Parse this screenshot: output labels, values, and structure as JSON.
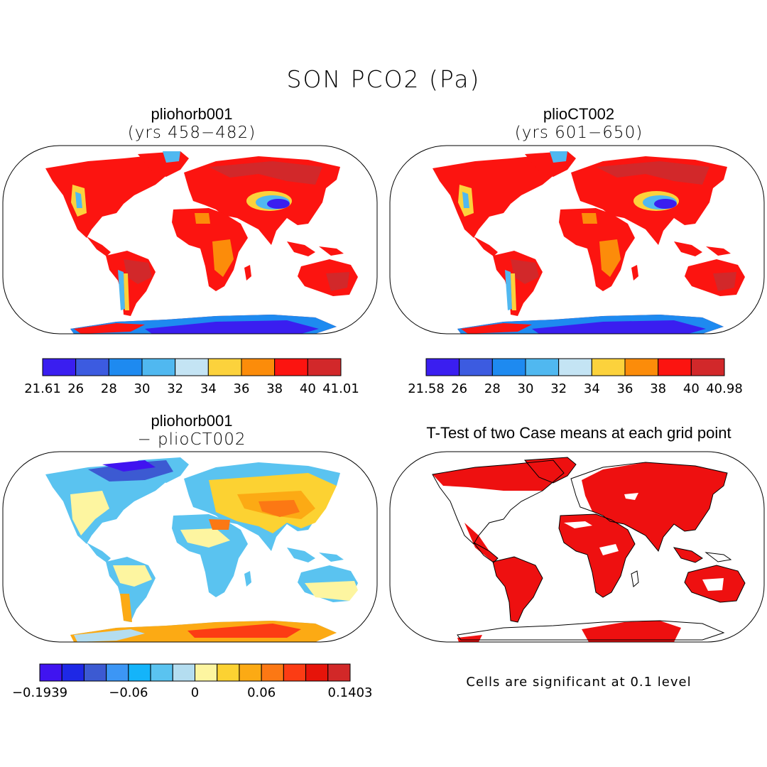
{
  "main_title": "SON PCO2 (Pa)",
  "panels": {
    "top_left": {
      "title": "pliohorb001",
      "subtitle": "(yrs 458−482)"
    },
    "top_right": {
      "title": "plioCT002",
      "subtitle": "(yrs 601−650)"
    },
    "bottom_left": {
      "title": "pliohorb001",
      "subtitle": "− plioCT002"
    },
    "bottom_right": {
      "title": "T-Test of two Case means at each grid point"
    }
  },
  "colorbars": {
    "top_left": {
      "colors": [
        "#3a1ef0",
        "#3c5be0",
        "#1e8af0",
        "#50b8f0",
        "#c4e4f4",
        "#fcd23c",
        "#fc8c0a",
        "#fc1410",
        "#d2282a"
      ],
      "labels": [
        "21.61",
        "26",
        "28",
        "30",
        "32",
        "34",
        "36",
        "38",
        "40",
        "41.01"
      ]
    },
    "top_right": {
      "colors": [
        "#3a1ef0",
        "#3c5be0",
        "#1e8af0",
        "#50b8f0",
        "#c4e4f4",
        "#fcd23c",
        "#fc8c0a",
        "#fc1410",
        "#d2282a"
      ],
      "labels": [
        "21.58",
        "26",
        "28",
        "30",
        "32",
        "34",
        "36",
        "38",
        "40",
        "40.98"
      ]
    },
    "bottom_left": {
      "colors": [
        "#4014f0",
        "#1e28e6",
        "#3c5ad2",
        "#3c96f5",
        "#14b4fa",
        "#5ac3f0",
        "#b4ddf0",
        "#fdf5a0",
        "#fcd232",
        "#fcaa14",
        "#fc7814",
        "#fc3c14",
        "#e6140a",
        "#d22828"
      ],
      "labels": [
        "−0.1939",
        "−0.06",
        "0",
        "0.06",
        "0.1403"
      ]
    }
  },
  "map_colors": {
    "high": "#d2282a",
    "mid": "#fc1410",
    "orange": "#fc8c0a",
    "yellow": "#fcd23c",
    "light_blue": "#50b8f0",
    "blue": "#1e8af0",
    "dark_blue": "#3a1ef0",
    "significant": "#ee1010"
  },
  "note": "Cells are significant at 0.1 level"
}
